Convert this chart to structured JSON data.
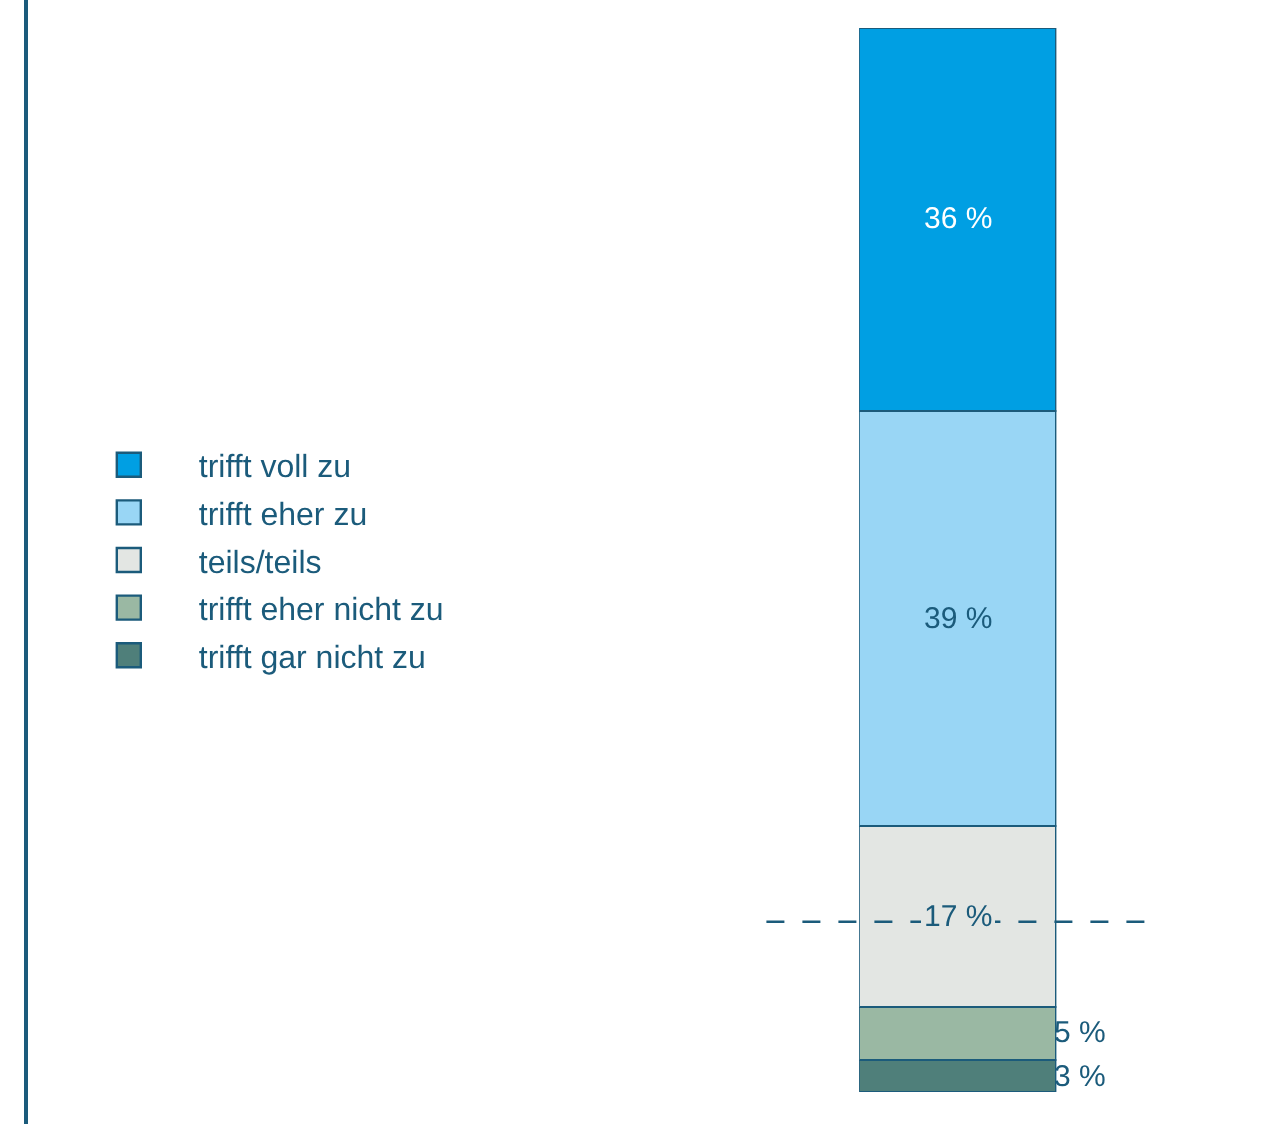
{
  "chart_data": {
    "type": "bar",
    "stacked": true,
    "categories": [
      null
    ],
    "legend": "left",
    "series": [
      {
        "name": "trifft gar nicht zu",
        "color": "#4f7f7a",
        "values": [
          3
        ],
        "value_labels": [
          "3 %"
        ]
      },
      {
        "name": "trifft eher nicht zu",
        "color": "#9ab8a3",
        "values": [
          5
        ],
        "value_labels": [
          "5 %"
        ]
      },
      {
        "name": "teils/teils",
        "color": "#e3e6e3",
        "values": [
          17
        ],
        "value_labels": [
          "17 %"
        ]
      },
      {
        "name": "trifft eher zu",
        "color": "#99d6f5",
        "values": [
          39
        ],
        "value_labels": [
          "39 %"
        ]
      },
      {
        "name": "trifft voll zu",
        "color": "#009fe3",
        "values": [
          36
        ],
        "value_labels": [
          "36 %"
        ]
      }
    ],
    "ref_lines": [
      {
        "axis": "y",
        "value": 16,
        "line_style": "dashed",
        "color": "#1b5b7b"
      }
    ]
  }
}
